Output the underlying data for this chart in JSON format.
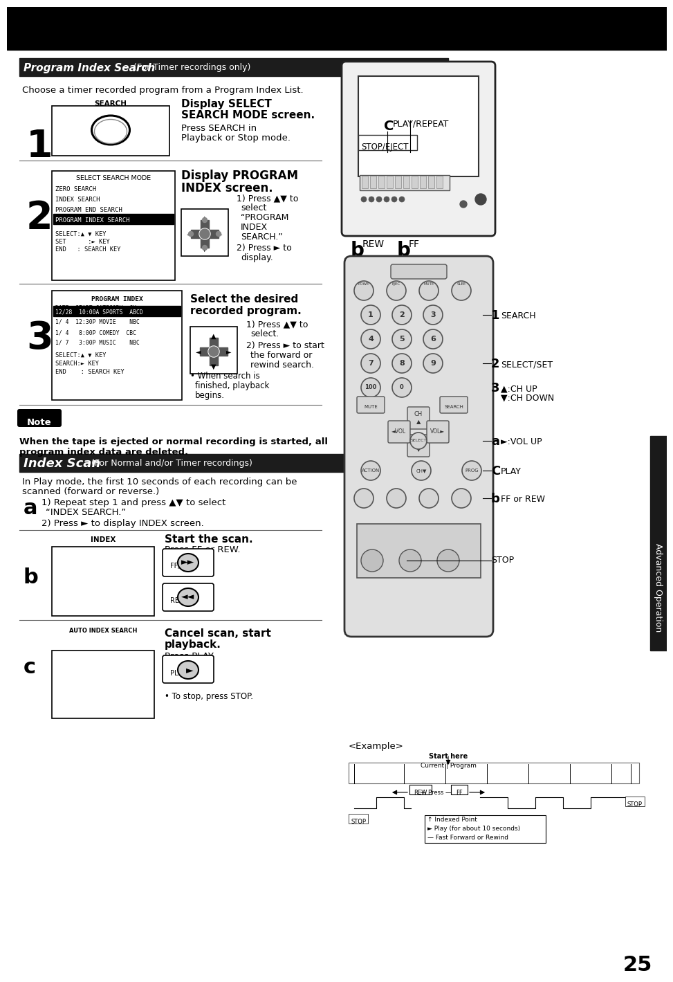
{
  "bg_color": "#ffffff",
  "title_bar1_text": "Program Index Search",
  "title_bar1_suffix": " (For Timer recordings only)",
  "title_bar2_text": "Index Scan ",
  "title_bar2_suffix": "(For Normal and/or Timer recordings)",
  "subtitle1": "Choose a timer recorded program from a Program Index List.",
  "step1_label": "1",
  "step2_label": "2",
  "step2_menu_title": "SELECT SEARCH MODE",
  "step2_menu_items": [
    "ZERO SEARCH",
    "INDEX SEARCH",
    "PROGRAM END SEARCH",
    "PROGRAM INDEX SEARCH"
  ],
  "step2_menu_highlight": 3,
  "step3_label": "3",
  "step3_menu_rows": [
    "1/ 4  12:30P MOVIE    NBC",
    "1/ 4   8:00P COMEDY  CBC",
    "1/ 7   3:00P MUSIC    NBC"
  ],
  "note_text": "Note",
  "note_body": "When the tape is ejected or normal recording is started, all\nprogram index data are deleted.",
  "scan_intro": "In Play mode, the first 10 seconds of each recording can be\nscanned (forward or reverse.)",
  "stepa_label": "a",
  "stepb_label": "b",
  "stepc_label": "c",
  "right_panel_tv_text1": "CPLAY/REPEAT",
  "right_panel_tv_text2": "STOP/EJECT",
  "example_text": "<Example>",
  "page_number": "25",
  "right_tab_text": "Advanced Operation"
}
